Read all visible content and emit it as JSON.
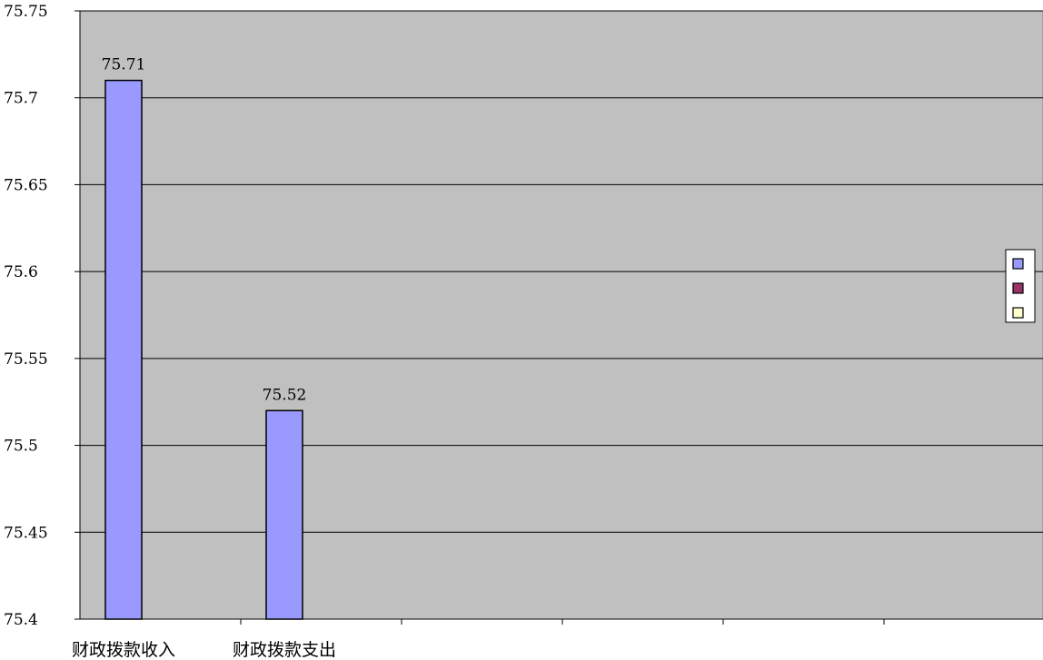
{
  "chart_data": {
    "type": "bar",
    "categories": [
      "财政拨款收入",
      "财政拨款支出"
    ],
    "values": [
      75.71,
      75.52
    ],
    "data_labels": [
      "75.71",
      "75.52"
    ],
    "ylim": [
      75.4,
      75.75
    ],
    "yticks": [
      "75.4",
      "75.45",
      "75.5",
      "75.55",
      "75.6",
      "75.65",
      "75.7",
      "75.75"
    ],
    "slot_count": 6,
    "grid": true,
    "legend": "right",
    "legend_swatches": [
      "#9999ff",
      "#993366",
      "#ffffcc"
    ],
    "colors": {
      "plot_background": "#c0c0c0",
      "bar_fill": "#9999ff",
      "bar_stroke": "#000000",
      "gridline": "#000000"
    }
  }
}
